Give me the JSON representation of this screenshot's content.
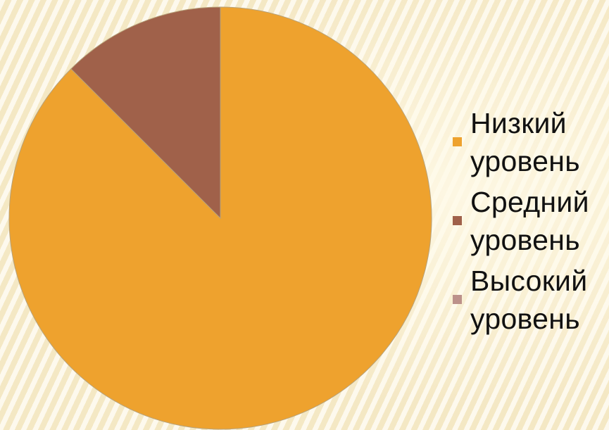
{
  "chart_data": {
    "type": "pie",
    "title": "",
    "series": [
      {
        "values": [
          87.5,
          12.5,
          0
        ],
        "categories": [
          "Низкий уровень",
          "Средний уровень",
          "Высокий уровень"
        ]
      }
    ],
    "categories": [
      "Низкий уровень",
      "Средний уровень",
      "Высокий уровень"
    ],
    "values": [
      87.5,
      12.5,
      0
    ],
    "colors": [
      "#eea22e",
      "#a0614a",
      "#bc918a"
    ],
    "start_angle": "12 o'clock, clockwise",
    "legend_position": "right"
  },
  "legend": {
    "items": [
      {
        "label": "Низкий уровень",
        "color": "#eea22e"
      },
      {
        "label": "Средний уровень",
        "color": "#a0614a"
      },
      {
        "label": "Высокий уровень",
        "color": "#bc918a"
      }
    ]
  }
}
